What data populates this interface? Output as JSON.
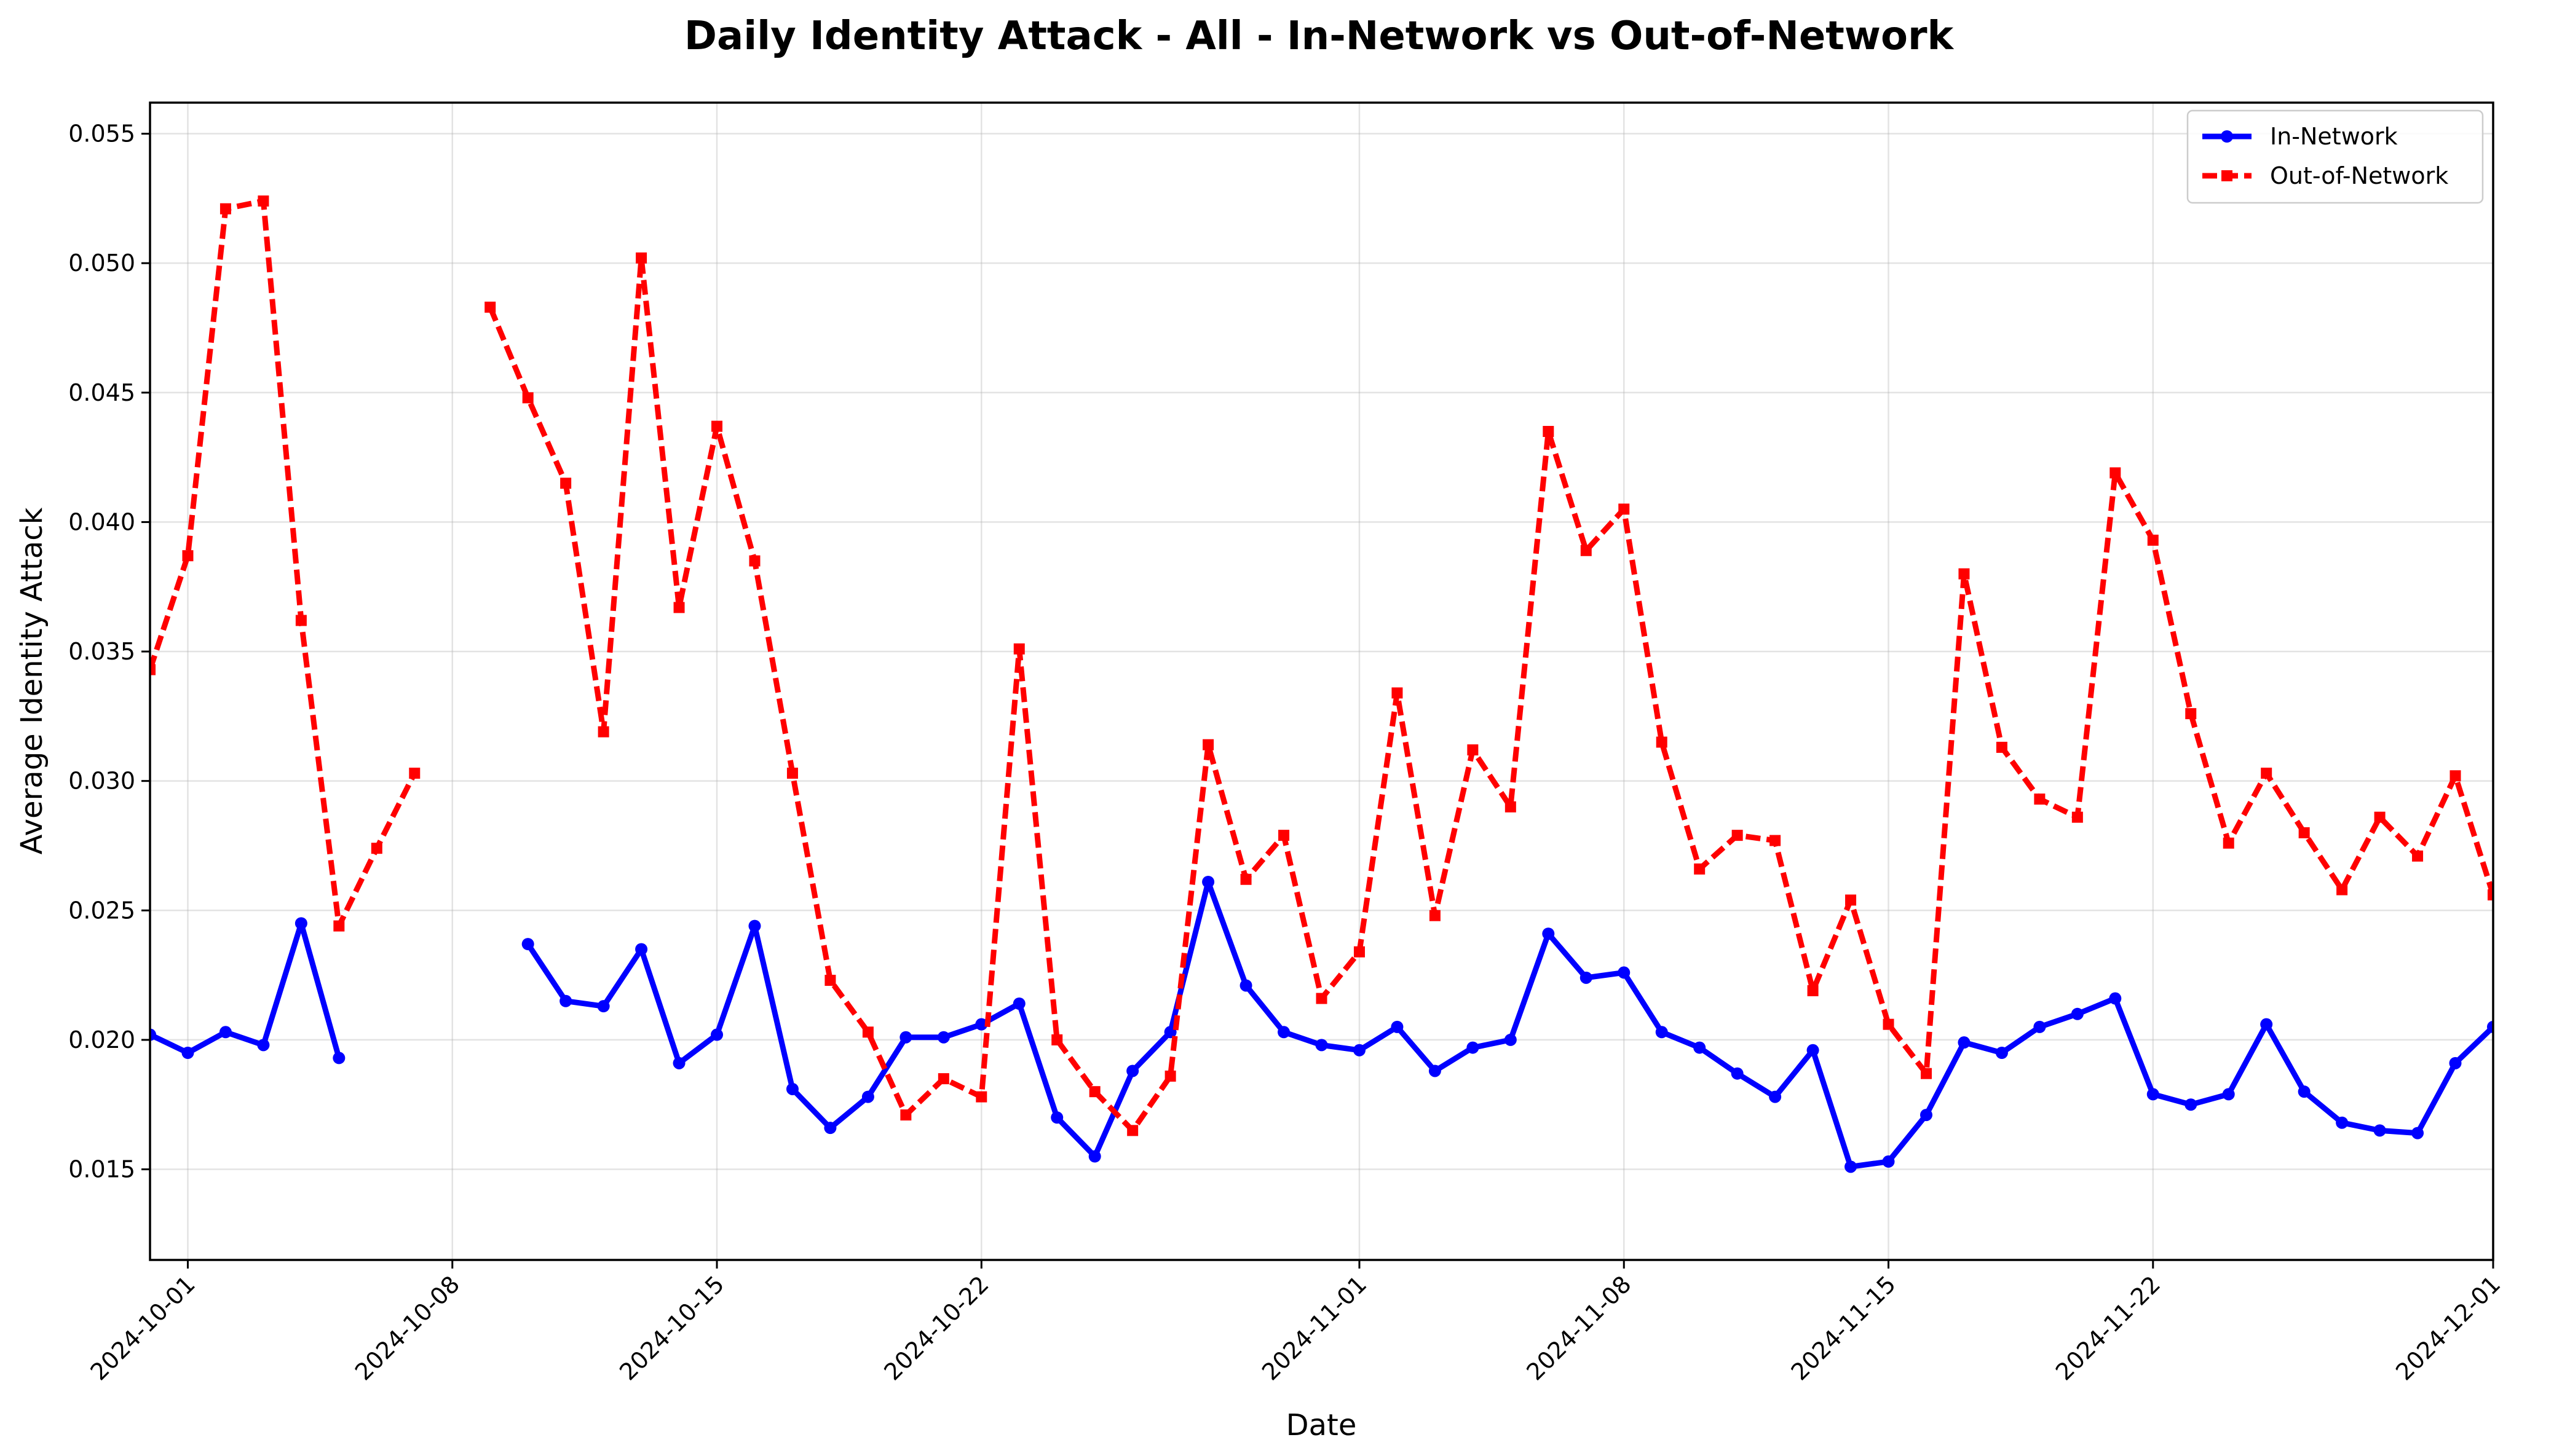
{
  "chart_data": {
    "type": "line",
    "title": "Daily Identity Attack - All - In-Network vs Out-of-Network",
    "xlabel": "Date",
    "ylabel": "Average Identity Attack",
    "x_start": "2024-09-30",
    "xlim": [
      "2024-09-30",
      "2024-12-01"
    ],
    "ylim": [
      0.0115,
      0.0562
    ],
    "x_ticks": [
      "2024-10-01",
      "2024-10-08",
      "2024-10-15",
      "2024-10-22",
      "2024-11-01",
      "2024-11-08",
      "2024-11-15",
      "2024-11-22",
      "2024-12-01"
    ],
    "y_ticks": [
      "0.015",
      "0.020",
      "0.025",
      "0.030",
      "0.035",
      "0.040",
      "0.045",
      "0.050",
      "0.055"
    ],
    "grid": true,
    "legend_position": "top-right",
    "series": [
      {
        "name": "In-Network",
        "color": "#0000ff",
        "line_style": "solid",
        "marker": "circle",
        "values": [
          0.0202,
          0.0195,
          0.0203,
          0.0198,
          0.0245,
          0.0193,
          null,
          null,
          null,
          null,
          0.0237,
          0.0215,
          0.0213,
          0.0235,
          0.0191,
          0.0202,
          0.0244,
          0.0181,
          0.0166,
          0.0178,
          0.0201,
          0.0201,
          0.0206,
          0.0214,
          0.017,
          0.0155,
          0.0188,
          0.0203,
          0.0261,
          0.0221,
          0.0203,
          0.0198,
          0.0196,
          0.0205,
          0.0188,
          0.0197,
          0.02,
          0.0241,
          0.0224,
          0.0226,
          0.0203,
          0.0197,
          0.0187,
          0.0178,
          0.0196,
          0.0151,
          0.0153,
          0.0171,
          0.0199,
          0.0195,
          0.0205,
          0.021,
          0.0216,
          0.0179,
          0.0175,
          0.0179,
          0.0206,
          0.018,
          0.0168,
          0.0165,
          0.0164,
          0.0191,
          0.0205
        ]
      },
      {
        "name": "Out-of-Network",
        "color": "#ff0000",
        "line_style": "dashed",
        "marker": "square",
        "values": [
          0.0343,
          0.0387,
          0.0521,
          0.0524,
          0.0362,
          0.0244,
          0.0274,
          0.0303,
          null,
          0.0483,
          0.0448,
          0.0415,
          0.0319,
          0.0502,
          0.0367,
          0.0437,
          0.0385,
          0.0303,
          0.0223,
          0.0203,
          0.0171,
          0.0185,
          0.0178,
          0.0351,
          0.02,
          0.018,
          0.0165,
          0.0186,
          0.0314,
          0.0262,
          0.0279,
          0.0216,
          0.0234,
          0.0334,
          0.0248,
          0.0312,
          0.029,
          0.0435,
          0.0389,
          0.0405,
          0.0315,
          0.0266,
          0.0279,
          0.0277,
          0.0219,
          0.0254,
          0.0206,
          0.0187,
          0.038,
          0.0313,
          0.0293,
          0.0286,
          0.0419,
          0.0393,
          0.0326,
          0.0276,
          0.0303,
          0.028,
          0.0258,
          0.0286,
          0.0271,
          0.0302,
          0.0256
        ]
      }
    ]
  }
}
